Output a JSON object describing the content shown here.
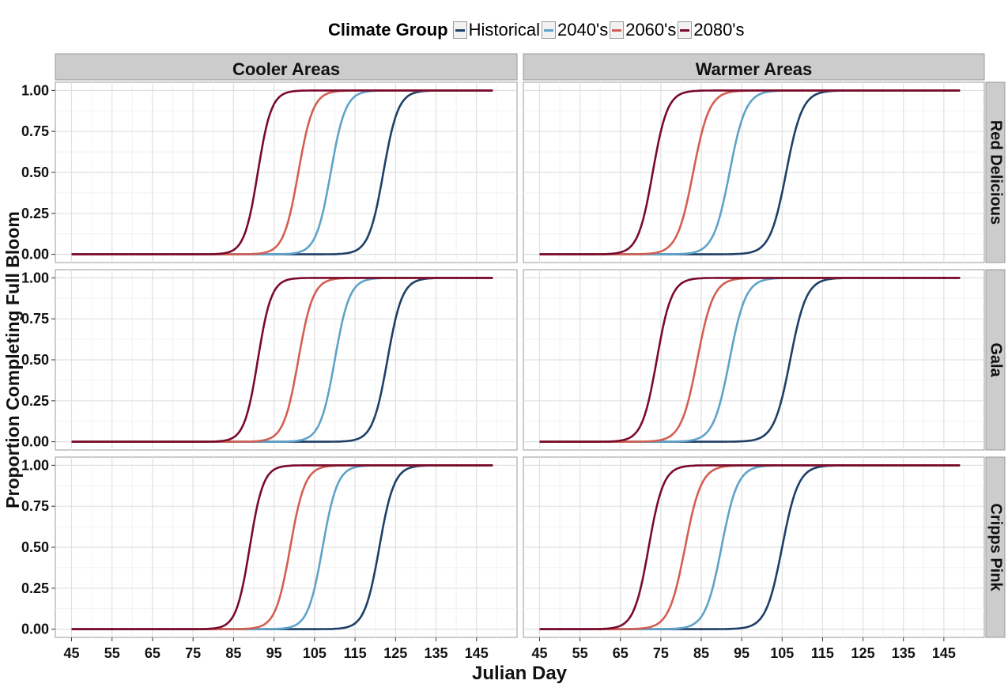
{
  "legend": {
    "title": "Climate Group",
    "items": [
      {
        "label": "Historical",
        "color": "#1f3f66"
      },
      {
        "label": "2040's",
        "color": "#5fa3c9"
      },
      {
        "label": "2060's",
        "color": "#d35f52"
      },
      {
        "label": "2080's",
        "color": "#7a0a2b"
      }
    ]
  },
  "chart_data": {
    "type": "line",
    "xlabel": "Julian Day",
    "ylabel": "Proportion Completing Full Bloom",
    "x_range": [
      45,
      149
    ],
    "xlim": [
      41,
      155
    ],
    "ylim": [
      -0.05,
      1.05
    ],
    "x_ticks": [
      45,
      55,
      65,
      75,
      85,
      95,
      105,
      115,
      125,
      135,
      145
    ],
    "y_ticks": [
      "0.00",
      "0.25",
      "0.50",
      "0.75",
      "1.00"
    ],
    "columns": [
      "Cooler Areas",
      "Warmer Areas"
    ],
    "rows": [
      "Red Delicious",
      "Gala",
      "Cripps Pink"
    ],
    "grid": true,
    "legend_position": "top",
    "series_names": [
      "Historical",
      "2040's",
      "2060's",
      "2080's"
    ],
    "panels": [
      {
        "row": "Red Delicious",
        "column": "Cooler Areas",
        "midpoints": [
          122,
          109,
          101,
          91
        ],
        "steepness": [
          0.55,
          0.55,
          0.55,
          0.6
        ]
      },
      {
        "row": "Red Delicious",
        "column": "Warmer Areas",
        "midpoints": [
          106,
          92,
          83,
          73
        ],
        "steepness": [
          0.5,
          0.5,
          0.5,
          0.55
        ]
      },
      {
        "row": "Gala",
        "column": "Cooler Areas",
        "midpoints": [
          123,
          110,
          101,
          91
        ],
        "steepness": [
          0.55,
          0.55,
          0.55,
          0.6
        ]
      },
      {
        "row": "Gala",
        "column": "Warmer Areas",
        "midpoints": [
          107,
          92,
          84,
          74
        ],
        "steepness": [
          0.5,
          0.5,
          0.5,
          0.55
        ]
      },
      {
        "row": "Cripps Pink",
        "column": "Cooler Areas",
        "midpoints": [
          121,
          107,
          99,
          89
        ],
        "steepness": [
          0.55,
          0.55,
          0.55,
          0.6
        ]
      },
      {
        "row": "Cripps Pink",
        "column": "Warmer Areas",
        "midpoints": [
          105,
          90,
          81,
          72
        ],
        "steepness": [
          0.5,
          0.5,
          0.5,
          0.55
        ]
      }
    ]
  }
}
